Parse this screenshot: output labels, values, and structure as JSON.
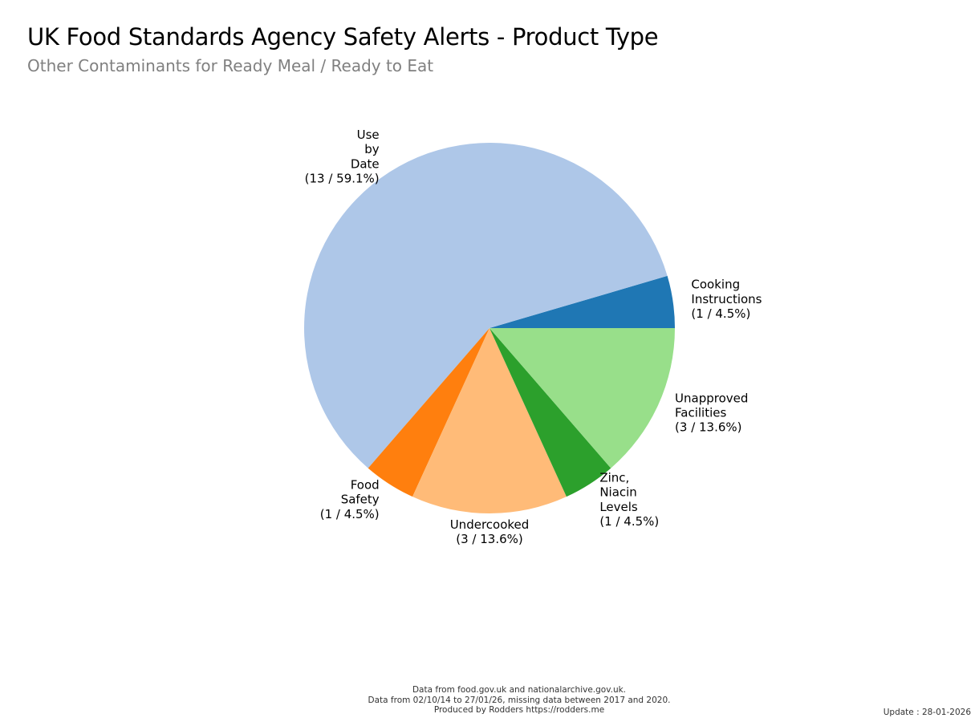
{
  "chart_data": {
    "type": "pie",
    "title": "UK Food Standards Agency Safety Alerts - Product Type",
    "subtitle": "Other Contaminants for Ready Meal / Ready to Eat",
    "start_angle_deg": 0,
    "direction": "counterclockwise",
    "slices": [
      {
        "label": "Cooking Instructions",
        "lines": [
          "Cooking",
          "Instructions",
          "(1 / 4.5%)"
        ],
        "value": 1,
        "percent": 4.5,
        "color": "#1f77b4"
      },
      {
        "label": "Use by Date",
        "lines": [
          "Use",
          "by",
          "Date",
          "(13 / 59.1%)"
        ],
        "value": 13,
        "percent": 59.1,
        "color": "#aec7e8"
      },
      {
        "label": "Food Safety",
        "lines": [
          "Food",
          "Safety",
          "(1 / 4.5%)"
        ],
        "value": 1,
        "percent": 4.5,
        "color": "#ff7f0e"
      },
      {
        "label": "Undercooked",
        "lines": [
          "Undercooked",
          "(3 / 13.6%)"
        ],
        "value": 3,
        "percent": 13.6,
        "color": "#ffbb78"
      },
      {
        "label": "Zinc, Niacin Levels",
        "lines": [
          "Zinc,",
          "Niacin",
          "Levels",
          "(1 / 4.5%)"
        ],
        "value": 1,
        "percent": 4.5,
        "color": "#2ca02c"
      },
      {
        "label": "Unapproved Facilities",
        "lines": [
          "Unapproved",
          "Facilities",
          "(3 / 13.6%)"
        ],
        "value": 3,
        "percent": 13.6,
        "color": "#98df8a"
      }
    ]
  },
  "footer": {
    "line1": "Data from food.gov.uk and nationalarchive.gov.uk.",
    "line2": "Data from 02/10/14 to 27/01/26, missing data between 2017 and 2020.",
    "line3": "Produced by Rodders https://rodders.me",
    "update": "Update : 28-01-2026"
  }
}
